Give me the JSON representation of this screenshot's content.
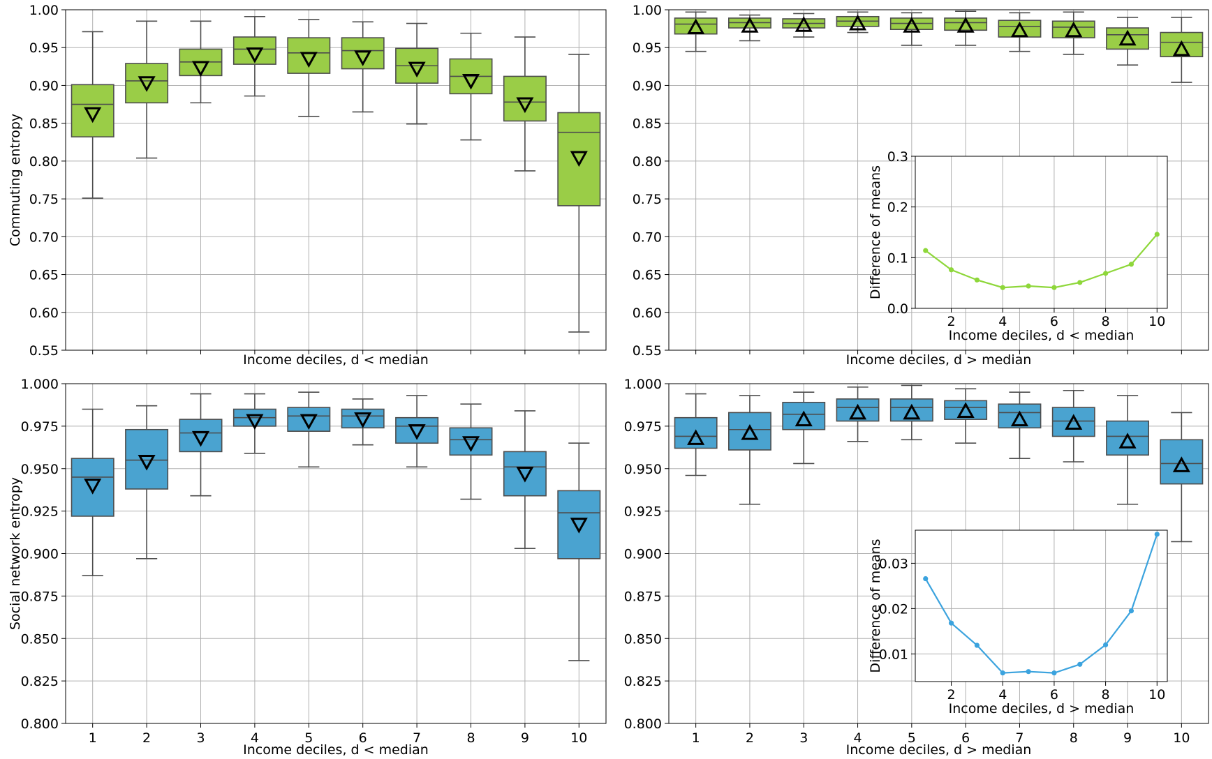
{
  "colors": {
    "green": "#9acd47",
    "blue": "#4aa3d0",
    "line_green": "#8ed73a",
    "line_blue": "#3ba3de",
    "grid": "#b0b0b0",
    "whisker": "#4d4d4d"
  },
  "chart_data": [
    {
      "id": "tl",
      "type": "box",
      "mean_marker": "triangle-down",
      "color": "green",
      "xlabel": "Income deciles, d < median",
      "ylabel": "Commuting entropy",
      "ylim": [
        0.55,
        1.0
      ],
      "yticks": [
        "0.55",
        "0.60",
        "0.65",
        "0.70",
        "0.75",
        "0.80",
        "0.85",
        "0.90",
        "0.95",
        "1.00"
      ],
      "categories": [
        "1",
        "2",
        "3",
        "4",
        "5",
        "6",
        "7",
        "8",
        "9",
        "10"
      ],
      "show_xtick_labels": false,
      "boxes": [
        {
          "whislo": 0.751,
          "q1": 0.832,
          "med": 0.875,
          "q3": 0.901,
          "whishi": 0.971,
          "mean": 0.862
        },
        {
          "whislo": 0.804,
          "q1": 0.877,
          "med": 0.906,
          "q3": 0.929,
          "whishi": 0.985,
          "mean": 0.903
        },
        {
          "whislo": 0.877,
          "q1": 0.913,
          "med": 0.931,
          "q3": 0.948,
          "whishi": 0.985,
          "mean": 0.923
        },
        {
          "whislo": 0.886,
          "q1": 0.928,
          "med": 0.948,
          "q3": 0.964,
          "whishi": 0.991,
          "mean": 0.941
        },
        {
          "whislo": 0.859,
          "q1": 0.916,
          "med": 0.943,
          "q3": 0.963,
          "whishi": 0.987,
          "mean": 0.935
        },
        {
          "whislo": 0.865,
          "q1": 0.922,
          "med": 0.946,
          "q3": 0.963,
          "whishi": 0.984,
          "mean": 0.937
        },
        {
          "whislo": 0.849,
          "q1": 0.903,
          "med": 0.926,
          "q3": 0.949,
          "whishi": 0.982,
          "mean": 0.922
        },
        {
          "whislo": 0.828,
          "q1": 0.889,
          "med": 0.912,
          "q3": 0.935,
          "whishi": 0.969,
          "mean": 0.906
        },
        {
          "whislo": 0.787,
          "q1": 0.853,
          "med": 0.878,
          "q3": 0.912,
          "whishi": 0.964,
          "mean": 0.875
        },
        {
          "whislo": 0.574,
          "q1": 0.741,
          "med": 0.838,
          "q3": 0.864,
          "whishi": 0.941,
          "mean": 0.804
        }
      ]
    },
    {
      "id": "tr",
      "type": "box",
      "mean_marker": "triangle-up",
      "color": "green",
      "xlabel": "Income deciles, d > median",
      "ylabel": "",
      "ylim": [
        0.55,
        1.0
      ],
      "yticks": [
        "0.55",
        "0.60",
        "0.65",
        "0.70",
        "0.75",
        "0.80",
        "0.85",
        "0.90",
        "0.95",
        "1.00"
      ],
      "categories": [
        "1",
        "2",
        "3",
        "4",
        "5",
        "6",
        "7",
        "8",
        "9",
        "10"
      ],
      "show_xtick_labels": false,
      "boxes": [
        {
          "whislo": 0.945,
          "q1": 0.968,
          "med": 0.981,
          "q3": 0.989,
          "whishi": 0.997,
          "mean": 0.977
        },
        {
          "whislo": 0.959,
          "q1": 0.976,
          "med": 0.983,
          "q3": 0.989,
          "whishi": 0.993,
          "mean": 0.979
        },
        {
          "whislo": 0.964,
          "q1": 0.976,
          "med": 0.982,
          "q3": 0.988,
          "whishi": 0.995,
          "mean": 0.98
        },
        {
          "whislo": 0.97,
          "q1": 0.978,
          "med": 0.985,
          "q3": 0.991,
          "whishi": 0.997,
          "mean": 0.982
        },
        {
          "whislo": 0.953,
          "q1": 0.974,
          "med": 0.982,
          "q3": 0.989,
          "whishi": 0.996,
          "mean": 0.979
        },
        {
          "whislo": 0.953,
          "q1": 0.973,
          "med": 0.983,
          "q3": 0.989,
          "whishi": 0.998,
          "mean": 0.979
        },
        {
          "whislo": 0.945,
          "q1": 0.964,
          "med": 0.978,
          "q3": 0.986,
          "whishi": 0.996,
          "mean": 0.973
        },
        {
          "whislo": 0.941,
          "q1": 0.963,
          "med": 0.977,
          "q3": 0.985,
          "whishi": 0.997,
          "mean": 0.973
        },
        {
          "whislo": 0.927,
          "q1": 0.948,
          "med": 0.967,
          "q3": 0.976,
          "whishi": 0.99,
          "mean": 0.962
        },
        {
          "whislo": 0.904,
          "q1": 0.938,
          "med": 0.957,
          "q3": 0.97,
          "whishi": 0.99,
          "mean": 0.948
        }
      ]
    },
    {
      "id": "bl",
      "type": "box",
      "mean_marker": "triangle-down",
      "color": "blue",
      "xlabel": "Income deciles, d < median",
      "ylabel": "Social network entropy",
      "ylim": [
        0.8,
        1.0
      ],
      "yticks": [
        "0.800",
        "0.825",
        "0.850",
        "0.875",
        "0.900",
        "0.925",
        "0.950",
        "0.975",
        "1.000"
      ],
      "categories": [
        "1",
        "2",
        "3",
        "4",
        "5",
        "6",
        "7",
        "8",
        "9",
        "10"
      ],
      "show_xtick_labels": true,
      "boxes": [
        {
          "whislo": 0.887,
          "q1": 0.922,
          "med": 0.945,
          "q3": 0.956,
          "whishi": 0.985,
          "mean": 0.94
        },
        {
          "whislo": 0.897,
          "q1": 0.938,
          "med": 0.955,
          "q3": 0.973,
          "whishi": 0.987,
          "mean": 0.954
        },
        {
          "whislo": 0.934,
          "q1": 0.96,
          "med": 0.971,
          "q3": 0.979,
          "whishi": 0.994,
          "mean": 0.968
        },
        {
          "whislo": 0.959,
          "q1": 0.975,
          "med": 0.98,
          "q3": 0.985,
          "whishi": 0.994,
          "mean": 0.978
        },
        {
          "whislo": 0.951,
          "q1": 0.972,
          "med": 0.981,
          "q3": 0.986,
          "whishi": 0.995,
          "mean": 0.978
        },
        {
          "whislo": 0.964,
          "q1": 0.974,
          "med": 0.981,
          "q3": 0.985,
          "whishi": 0.991,
          "mean": 0.979
        },
        {
          "whislo": 0.951,
          "q1": 0.965,
          "med": 0.975,
          "q3": 0.98,
          "whishi": 0.993,
          "mean": 0.972
        },
        {
          "whislo": 0.932,
          "q1": 0.958,
          "med": 0.967,
          "q3": 0.974,
          "whishi": 0.988,
          "mean": 0.965
        },
        {
          "whislo": 0.903,
          "q1": 0.934,
          "med": 0.951,
          "q3": 0.96,
          "whishi": 0.984,
          "mean": 0.947
        },
        {
          "whislo": 0.837,
          "q1": 0.897,
          "med": 0.924,
          "q3": 0.937,
          "whishi": 0.965,
          "mean": 0.917
        }
      ]
    },
    {
      "id": "br",
      "type": "box",
      "mean_marker": "triangle-up",
      "color": "blue",
      "xlabel": "Income deciles, d > median",
      "ylabel": "",
      "ylim": [
        0.8,
        1.0
      ],
      "yticks": [
        "0.800",
        "0.825",
        "0.850",
        "0.875",
        "0.900",
        "0.925",
        "0.950",
        "0.975",
        "1.000"
      ],
      "categories": [
        "1",
        "2",
        "3",
        "4",
        "5",
        "6",
        "7",
        "8",
        "9",
        "10"
      ],
      "show_xtick_labels": true,
      "boxes": [
        {
          "whislo": 0.946,
          "q1": 0.962,
          "med": 0.969,
          "q3": 0.98,
          "whishi": 0.994,
          "mean": 0.968
        },
        {
          "whislo": 0.929,
          "q1": 0.961,
          "med": 0.973,
          "q3": 0.983,
          "whishi": 0.993,
          "mean": 0.971
        },
        {
          "whislo": 0.953,
          "q1": 0.973,
          "med": 0.982,
          "q3": 0.989,
          "whishi": 0.995,
          "mean": 0.979
        },
        {
          "whislo": 0.966,
          "q1": 0.978,
          "med": 0.986,
          "q3": 0.991,
          "whishi": 0.998,
          "mean": 0.983
        },
        {
          "whislo": 0.967,
          "q1": 0.978,
          "med": 0.986,
          "q3": 0.991,
          "whishi": 0.999,
          "mean": 0.983
        },
        {
          "whislo": 0.965,
          "q1": 0.979,
          "med": 0.986,
          "q3": 0.99,
          "whishi": 0.997,
          "mean": 0.984
        },
        {
          "whislo": 0.956,
          "q1": 0.974,
          "med": 0.983,
          "q3": 0.988,
          "whishi": 0.995,
          "mean": 0.979
        },
        {
          "whislo": 0.954,
          "q1": 0.969,
          "med": 0.978,
          "q3": 0.986,
          "whishi": 0.996,
          "mean": 0.977
        },
        {
          "whislo": 0.929,
          "q1": 0.958,
          "med": 0.969,
          "q3": 0.978,
          "whishi": 0.993,
          "mean": 0.966
        },
        {
          "whislo": 0.907,
          "q1": 0.941,
          "med": 0.953,
          "q3": 0.967,
          "whishi": 0.983,
          "mean": 0.952
        }
      ]
    },
    {
      "id": "inset_top",
      "type": "line",
      "color": "line_green",
      "xlabel": "Income deciles, d < median",
      "ylabel": "Difference of means",
      "xlim": [
        0.6,
        10.4
      ],
      "ylim": [
        0.0,
        0.3
      ],
      "xticks": [
        "2",
        "4",
        "6",
        "8",
        "10"
      ],
      "yticks": [
        "0.0",
        "0.1",
        "0.2",
        "0.3"
      ],
      "x": [
        1,
        2,
        3,
        4,
        5,
        6,
        7,
        8,
        9,
        10
      ],
      "y": [
        0.114,
        0.076,
        0.056,
        0.041,
        0.044,
        0.041,
        0.051,
        0.069,
        0.087,
        0.146
      ]
    },
    {
      "id": "inset_bottom",
      "type": "line",
      "color": "line_blue",
      "xlabel": "Income deciles, d > median",
      "ylabel": "Difference of means",
      "xlim": [
        0.6,
        10.4
      ],
      "ylim": [
        0.0039,
        0.0373
      ],
      "xticks": [
        "2",
        "4",
        "6",
        "8",
        "10"
      ],
      "yticks": [
        "0.01",
        "0.02",
        "0.03"
      ],
      "x": [
        1,
        2,
        3,
        4,
        5,
        6,
        7,
        8,
        9,
        10
      ],
      "y": [
        0.0266,
        0.0168,
        0.0119,
        0.0058,
        0.0061,
        0.0058,
        0.0077,
        0.012,
        0.0195,
        0.0364
      ]
    }
  ]
}
